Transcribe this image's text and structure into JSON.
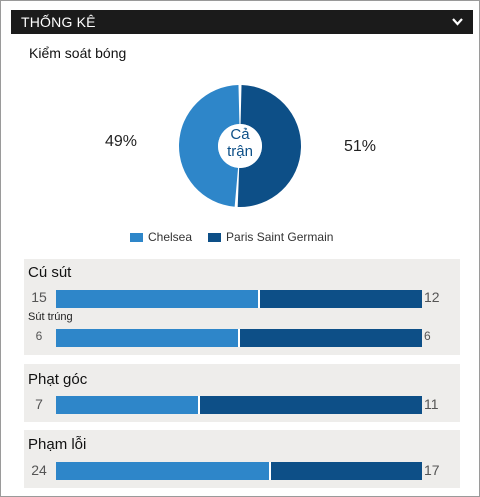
{
  "header": {
    "title": "THỐNG KÊ",
    "toggle_icon": "chevron-down-icon"
  },
  "possession": {
    "title": "Kiểm soát bóng",
    "left_pct": "49%",
    "right_pct": "51%",
    "center_line1": "Cả",
    "center_line2": "trận",
    "left_fraction": 0.49
  },
  "colors": {
    "home": "#2e86c9",
    "away": "#0d4f87"
  },
  "legend": {
    "home": "Chelsea",
    "away": "Paris Saint Germain"
  },
  "shots": {
    "title": "Cú sút",
    "home": "15",
    "away": "12",
    "on_target_title": "Sút trúng",
    "on_target_home": "6",
    "on_target_away": "6"
  },
  "corners": {
    "title": "Phạt góc",
    "home": "7",
    "away": "11"
  },
  "fouls": {
    "title": "Phạm lỗi",
    "home": "24",
    "away": "17"
  }
}
